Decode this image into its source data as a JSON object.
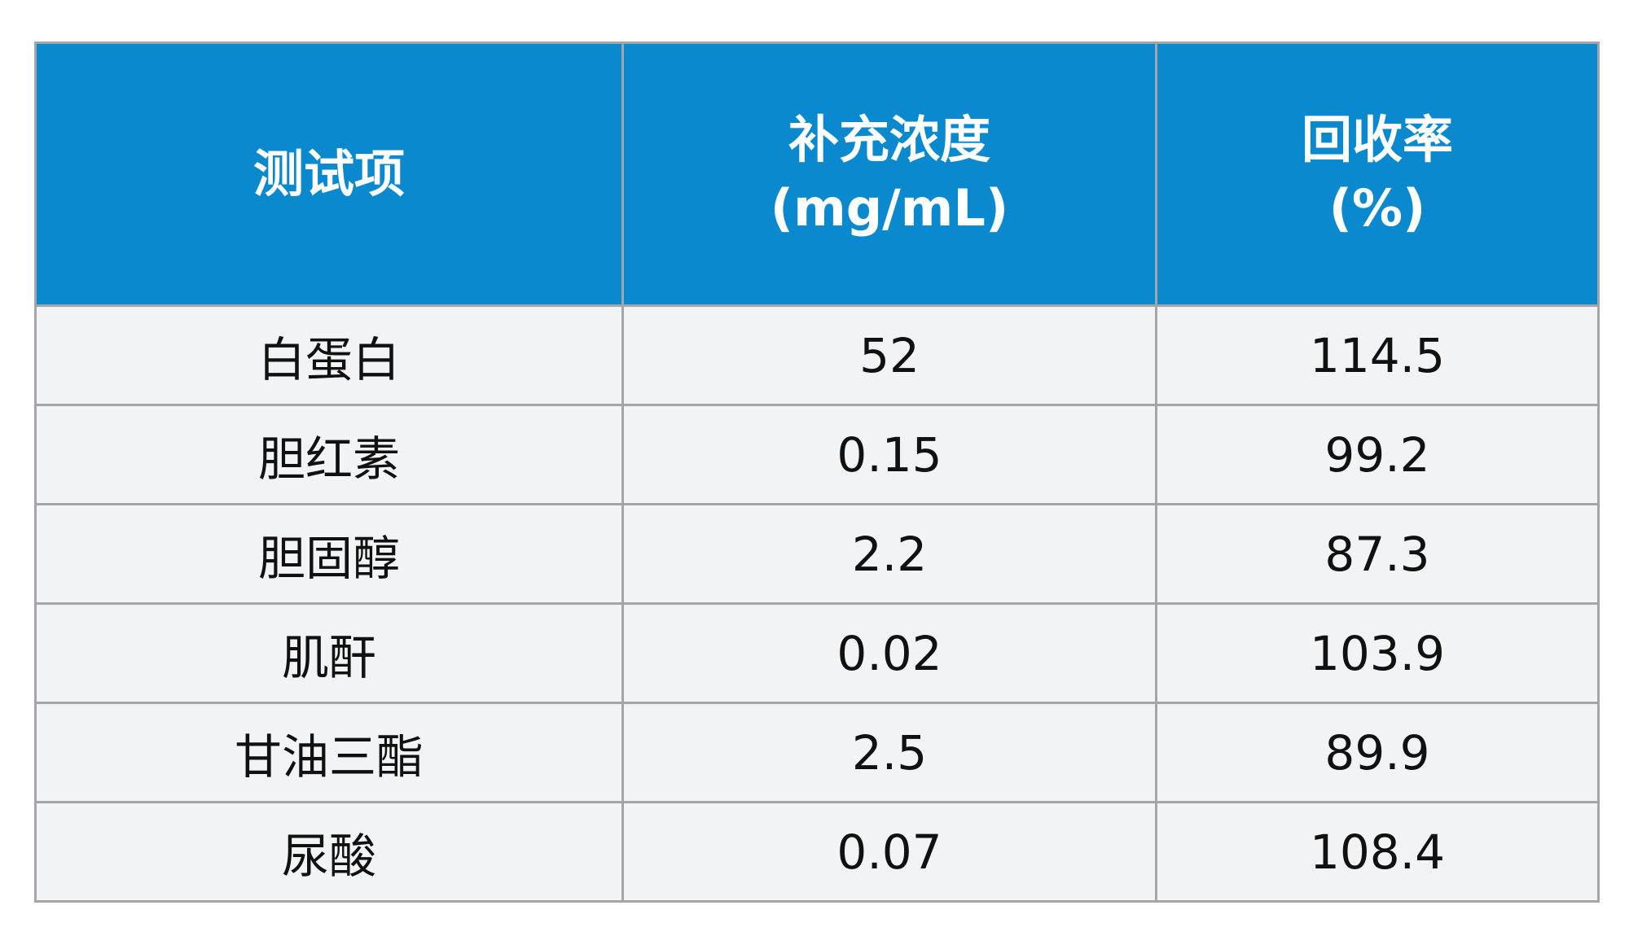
{
  "table": {
    "header": [
      [
        "测试项"
      ],
      [
        "补充浓度",
        "(mg/mL)"
      ],
      [
        "回收率",
        "(%)"
      ]
    ],
    "rows": [
      [
        "白蛋白",
        "52",
        "114.5"
      ],
      [
        "胆红素",
        "0.15",
        "99.2"
      ],
      [
        "胆固醇",
        "2.2",
        "87.3"
      ],
      [
        "肌酐",
        "0.02",
        "103.9"
      ],
      [
        "甘油三酯",
        "2.5",
        "89.9"
      ],
      [
        "尿酸",
        "0.07",
        "108.4"
      ]
    ]
  }
}
